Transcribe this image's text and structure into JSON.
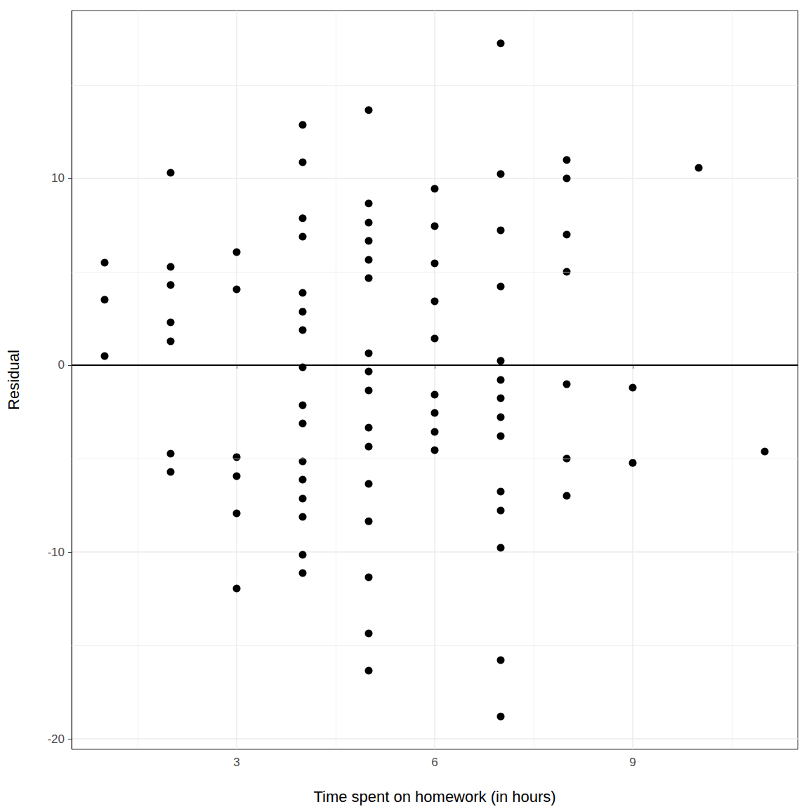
{
  "chart_data": {
    "type": "scatter",
    "x_label": "Time spent on homework (in hours)",
    "y_label": "Residual",
    "color": "#000000",
    "marker": "circle",
    "grid": true,
    "hline": 0,
    "xlim": [
      0.5,
      11.5
    ],
    "ylim": [
      -20.56,
      18.98
    ],
    "xticks": [
      3,
      6,
      9
    ],
    "yticks": [
      -20,
      -10,
      0,
      10
    ],
    "x": [
      1,
      1,
      1,
      2,
      2,
      2,
      2,
      2,
      2,
      2,
      3,
      3,
      3,
      3,
      3,
      3,
      4,
      4,
      4,
      4,
      4,
      4,
      4,
      4,
      4,
      4,
      4,
      4,
      4,
      4,
      4,
      4,
      5,
      5,
      5,
      5,
      5,
      5,
      5,
      5,
      5,
      5,
      5,
      5,
      5,
      5,
      5,
      5,
      6,
      6,
      6,
      6,
      6,
      6,
      6,
      6,
      6,
      7,
      7,
      7,
      7,
      7,
      7,
      7,
      7,
      7,
      7,
      7,
      7,
      7,
      7,
      8,
      8,
      8,
      8,
      8,
      8,
      8,
      9,
      9,
      10,
      11
    ],
    "values": [
      5.49,
      3.5,
      0.49,
      10.3,
      5.26,
      4.29,
      2.29,
      1.28,
      -4.74,
      -5.71,
      6.05,
      4.06,
      -4.92,
      -5.94,
      -7.93,
      -11.95,
      12.86,
      10.86,
      7.86,
      6.88,
      3.87,
      2.86,
      1.88,
      -0.11,
      -2.14,
      -3.12,
      -5.15,
      -6.13,
      -7.14,
      -8.12,
      -10.15,
      -11.13,
      13.65,
      8.65,
      7.63,
      6.65,
      5.64,
      4.66,
      0.64,
      -0.34,
      -1.35,
      -3.35,
      -4.36,
      -6.35,
      -8.35,
      -11.35,
      -14.36,
      -16.35,
      9.44,
      7.44,
      5.45,
      3.42,
      1.43,
      -1.58,
      -2.56,
      -3.57,
      -4.55,
      17.22,
      10.23,
      7.22,
      4.21,
      0.23,
      -0.79,
      -1.77,
      -2.78,
      -3.8,
      -6.77,
      -7.78,
      -9.77,
      -15.79,
      -18.8,
      10.98,
      10.0,
      6.99,
      5.0,
      -1.02,
      -5.0,
      -6.99,
      -1.2,
      -5.23,
      10.56,
      -4.62
    ]
  }
}
